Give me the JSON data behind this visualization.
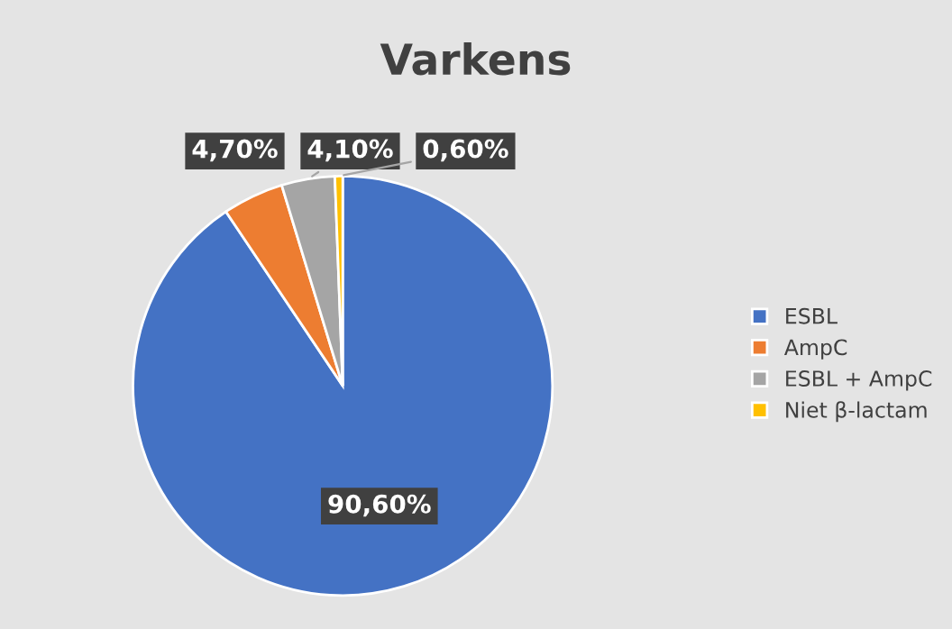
{
  "chart_data": {
    "type": "pie",
    "title": "Varkens",
    "categories": [
      "ESBL",
      "AmpC",
      "ESBL + AmpC",
      "Niet β-lactam"
    ],
    "values": [
      90.6,
      4.7,
      4.1,
      0.6
    ],
    "colors": [
      "#4472c4",
      "#ed7d31",
      "#a5a5a5",
      "#ffc000"
    ],
    "value_labels": [
      "90,60%",
      "4,70%",
      "4,10%",
      "0,60%"
    ],
    "legend": "right"
  }
}
